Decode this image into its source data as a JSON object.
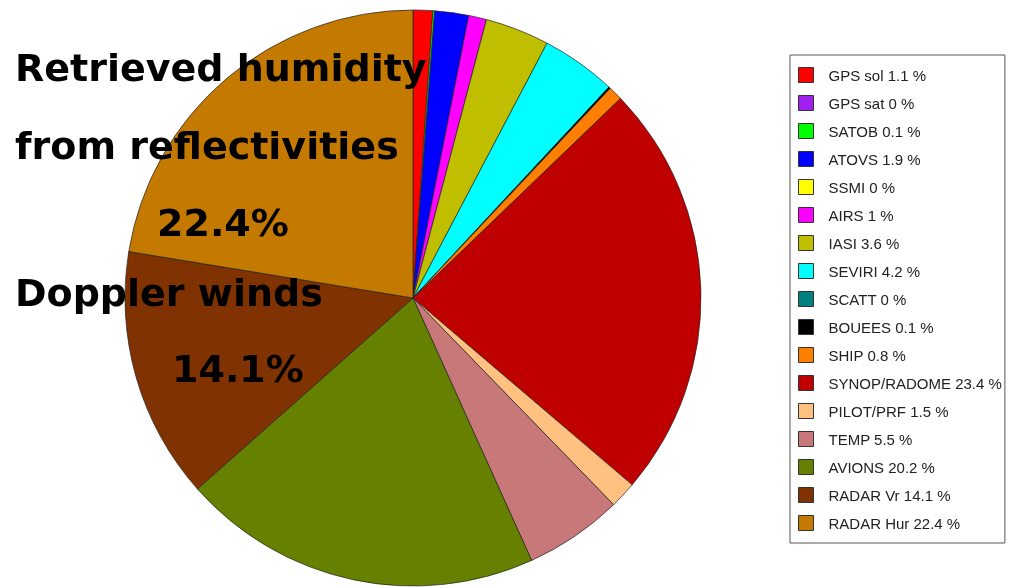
{
  "chart_data": {
    "type": "pie",
    "categories": [
      "GPS sol 1.1 %",
      "GPS sat 0 %",
      "SATOB 0.1 %",
      "ATOVS 1.9 %",
      "SSMI 0 %",
      "AIRS 1 %",
      "IASI 3.6 %",
      "SEVIRI 4.2 %",
      "SCATT 0 %",
      "BOUEES 0.1 %",
      "SHIP 0.8 %",
      "SYNOP/RADOME 23.4 %",
      "PILOT/PRF 1.5 %",
      "TEMP 5.5 %",
      "AVIONS 20.2 %",
      "RADAR Vr 14.1 %",
      "RADAR Hur 22.4 %"
    ],
    "values": [
      1.1,
      0,
      0.1,
      1.9,
      0,
      1,
      3.6,
      4.2,
      0,
      0.1,
      0.8,
      23.4,
      1.5,
      5.5,
      20.2,
      14.1,
      22.4
    ],
    "colors": [
      "#ff0000",
      "#a020f0",
      "#00ff00",
      "#0000ff",
      "#ffff00",
      "#ff00ff",
      "#bfbf00",
      "#00ffff",
      "#008080",
      "#000000",
      "#ff8000",
      "#bf0000",
      "#ffc080",
      "#c87878",
      "#668000",
      "#803300",
      "#c47a00"
    ],
    "value_labels": [
      null,
      null,
      null,
      null,
      null,
      null,
      null,
      null,
      null,
      null,
      null,
      null,
      null,
      null,
      null,
      "14.1%",
      "22.4%"
    ],
    "annotations": [
      "Retrieved humidity",
      "from reflectivities",
      "Doppler winds"
    ],
    "legend": "right"
  }
}
